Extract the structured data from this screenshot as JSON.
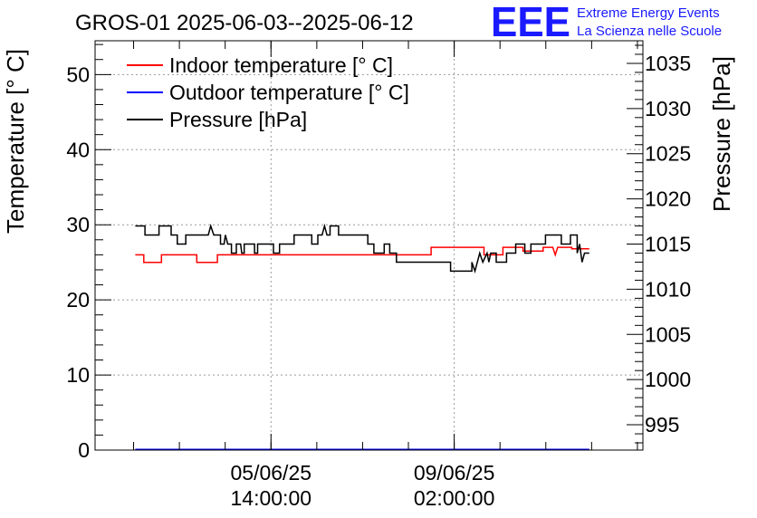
{
  "chart_data": {
    "type": "line",
    "title": "GROS-01 2025-06-03--2025-06-12",
    "ylabel": "Temperature [° C]",
    "y2label": "Pressure [hPa]",
    "xlabel": "",
    "ylim": [
      0,
      54.5
    ],
    "y2lim": [
      992.2,
      1037.5
    ],
    "xlim": [
      0,
      9.0
    ],
    "y_ticks": [
      "0",
      "10",
      "20",
      "30",
      "40",
      "50"
    ],
    "y2_ticks": [
      "995",
      "1000",
      "1005",
      "1010",
      "1015",
      "1020",
      "1025",
      "1030",
      "1035"
    ],
    "x_ticks": [
      {
        "x": 2.89,
        "date": "05/06/25",
        "time": "14:00:00"
      },
      {
        "x": 5.9,
        "date": "09/06/25",
        "time": "02:00:00"
      }
    ],
    "grid": true,
    "legend_position": "top-left",
    "logo": {
      "text": "EEE",
      "line1": "Extreme Energy Events",
      "line2": "La Scienza nelle Scuole"
    },
    "series": [
      {
        "name": "Indoor temperature [° C]",
        "axis": "left",
        "color": "#ff0000",
        "points": [
          [
            0.66,
            26
          ],
          [
            0.8,
            26
          ],
          [
            0.8,
            25
          ],
          [
            1.09,
            25
          ],
          [
            1.09,
            26
          ],
          [
            1.67,
            26
          ],
          [
            1.67,
            25
          ],
          [
            2.01,
            25
          ],
          [
            2.01,
            26
          ],
          [
            5.52,
            26
          ],
          [
            5.52,
            27
          ],
          [
            6.39,
            27
          ],
          [
            6.39,
            26
          ],
          [
            6.7,
            26
          ],
          [
            6.7,
            27
          ],
          [
            7.03,
            27
          ],
          [
            7.03,
            26.5
          ],
          [
            7.36,
            26.5
          ],
          [
            7.36,
            27
          ],
          [
            7.52,
            27
          ],
          [
            7.56,
            26
          ],
          [
            7.6,
            27
          ],
          [
            7.83,
            27
          ],
          [
            7.83,
            26.8
          ],
          [
            8.12,
            26.8
          ]
        ]
      },
      {
        "name": "Outdoor temperature [° C]",
        "axis": "left",
        "color": "#0000ff",
        "points": [
          [
            0.66,
            0.1
          ],
          [
            8.12,
            0.1
          ]
        ]
      },
      {
        "name": "Pressure [hPa]",
        "axis": "right",
        "color": "#000000",
        "points": [
          [
            0.66,
            1017
          ],
          [
            0.82,
            1017
          ],
          [
            0.82,
            1016
          ],
          [
            1.05,
            1016
          ],
          [
            1.05,
            1017
          ],
          [
            1.25,
            1017
          ],
          [
            1.25,
            1016
          ],
          [
            1.35,
            1016
          ],
          [
            1.35,
            1015
          ],
          [
            1.49,
            1015
          ],
          [
            1.49,
            1016
          ],
          [
            1.86,
            1016
          ],
          [
            1.9,
            1017
          ],
          [
            1.95,
            1016
          ],
          [
            2.06,
            1016
          ],
          [
            2.06,
            1015
          ],
          [
            2.12,
            1015
          ],
          [
            2.14,
            1016
          ],
          [
            2.18,
            1015
          ],
          [
            2.24,
            1015
          ],
          [
            2.24,
            1014
          ],
          [
            2.32,
            1014
          ],
          [
            2.32,
            1015
          ],
          [
            2.39,
            1015
          ],
          [
            2.41,
            1014
          ],
          [
            2.45,
            1014
          ],
          [
            2.45,
            1015
          ],
          [
            2.62,
            1015
          ],
          [
            2.62,
            1014
          ],
          [
            2.67,
            1014
          ],
          [
            2.67,
            1015
          ],
          [
            2.93,
            1015
          ],
          [
            2.93,
            1014
          ],
          [
            3.03,
            1014
          ],
          [
            3.03,
            1015
          ],
          [
            3.27,
            1015
          ],
          [
            3.27,
            1016
          ],
          [
            3.56,
            1016
          ],
          [
            3.56,
            1015
          ],
          [
            3.66,
            1015
          ],
          [
            3.66,
            1016
          ],
          [
            3.73,
            1016
          ],
          [
            3.77,
            1017
          ],
          [
            3.81,
            1016
          ],
          [
            3.86,
            1016
          ],
          [
            3.86,
            1017
          ],
          [
            4.0,
            1017
          ],
          [
            4.0,
            1016
          ],
          [
            4.48,
            1016
          ],
          [
            4.48,
            1015
          ],
          [
            4.58,
            1015
          ],
          [
            4.58,
            1014
          ],
          [
            4.75,
            1014
          ],
          [
            4.75,
            1015
          ],
          [
            4.84,
            1015
          ],
          [
            4.84,
            1014
          ],
          [
            4.95,
            1014
          ],
          [
            4.95,
            1013
          ],
          [
            5.84,
            1013
          ],
          [
            5.84,
            1012
          ],
          [
            6.19,
            1012
          ],
          [
            6.19,
            1013
          ],
          [
            6.24,
            1012
          ],
          [
            6.32,
            1014
          ],
          [
            6.37,
            1013
          ],
          [
            6.44,
            1014
          ],
          [
            6.47,
            1013
          ],
          [
            6.5,
            1014
          ],
          [
            6.59,
            1014
          ],
          [
            6.59,
            1013
          ],
          [
            6.76,
            1013
          ],
          [
            6.76,
            1014
          ],
          [
            6.91,
            1014
          ],
          [
            6.91,
            1015
          ],
          [
            7.06,
            1015
          ],
          [
            7.06,
            1014
          ],
          [
            7.16,
            1014
          ],
          [
            7.16,
            1015
          ],
          [
            7.4,
            1015
          ],
          [
            7.4,
            1016
          ],
          [
            7.66,
            1016
          ],
          [
            7.66,
            1015
          ],
          [
            7.81,
            1015
          ],
          [
            7.81,
            1016
          ],
          [
            7.92,
            1016
          ],
          [
            7.92,
            1014
          ],
          [
            7.96,
            1015
          ],
          [
            8.0,
            1013
          ],
          [
            8.04,
            1014
          ],
          [
            8.12,
            1014
          ]
        ]
      }
    ]
  }
}
